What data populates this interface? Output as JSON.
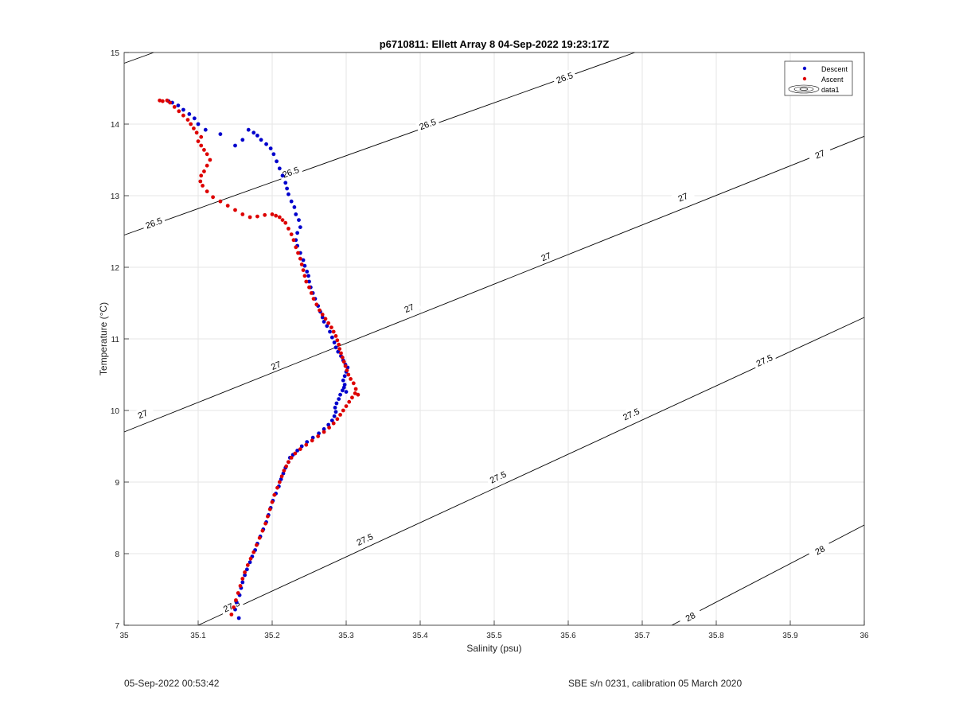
{
  "chart_data": {
    "type": "scatter",
    "title": "p6710811: Ellett Array 8 04-Sep-2022 19:23:17Z",
    "xlabel": "Salinity (psu)",
    "ylabel": "Temperature (°C)",
    "xlim": [
      35,
      36
    ],
    "ylim": [
      7,
      15
    ],
    "xticks": [
      35,
      35.1,
      35.2,
      35.3,
      35.4,
      35.5,
      35.6,
      35.7,
      35.8,
      35.9,
      36
    ],
    "xtick_labels": [
      "35",
      "35.1",
      "35.2",
      "35.3",
      "35.4",
      "35.5",
      "35.6",
      "35.7",
      "35.8",
      "35.9",
      "36"
    ],
    "yticks": [
      7,
      8,
      9,
      10,
      11,
      12,
      13,
      14,
      15
    ],
    "ytick_labels": [
      "7",
      "8",
      "9",
      "10",
      "11",
      "12",
      "13",
      "14",
      "15"
    ],
    "grid": true,
    "legend": {
      "placement": "top-right",
      "entries": [
        "Descent",
        "Ascent",
        "data1"
      ]
    },
    "contours": [
      {
        "level_label": "26.5",
        "points": [
          [
            35.0,
            14.85
          ],
          [
            35.0,
            12.45
          ],
          [
            35.7,
            15.0
          ]
        ],
        "segments": [
          [
            [
              35.0,
              14.85
            ],
            [
              35.04,
              15.0
            ]
          ],
          [
            [
              35.0,
              12.45
            ],
            [
              35.69,
              15.0
            ]
          ]
        ],
        "labels": [
          {
            "x": 35.04,
            "y": 12.62,
            "text": "26.5"
          },
          {
            "x": 35.225,
            "y": 13.33,
            "text": "26.5"
          },
          {
            "x": 35.41,
            "y": 14.0,
            "text": "26.5"
          },
          {
            "x": 35.595,
            "y": 14.65,
            "text": "26.5"
          }
        ]
      },
      {
        "level_label": "27",
        "segments": [
          [
            [
              35.0,
              9.7
            ],
            [
              36.0,
              13.83
            ]
          ]
        ],
        "labels": [
          {
            "x": 35.025,
            "y": 9.95,
            "text": "27"
          },
          {
            "x": 35.205,
            "y": 10.63,
            "text": "27"
          },
          {
            "x": 35.385,
            "y": 11.43,
            "text": "27"
          },
          {
            "x": 35.57,
            "y": 12.15,
            "text": "27"
          },
          {
            "x": 35.755,
            "y": 12.98,
            "text": "27"
          },
          {
            "x": 35.94,
            "y": 13.58,
            "text": "27"
          }
        ]
      },
      {
        "level_label": "27.5",
        "segments": [
          [
            [
              35.1,
              7.0
            ],
            [
              36.0,
              11.3
            ]
          ]
        ],
        "labels": [
          {
            "x": 35.145,
            "y": 7.27,
            "text": "27.5"
          },
          {
            "x": 35.325,
            "y": 8.2,
            "text": "27.5"
          },
          {
            "x": 35.505,
            "y": 9.07,
            "text": "27.5"
          },
          {
            "x": 35.685,
            "y": 9.95,
            "text": "27.5"
          },
          {
            "x": 35.865,
            "y": 10.7,
            "text": "27.5"
          }
        ]
      },
      {
        "level_label": "28",
        "segments": [
          [
            [
              35.74,
              7.0
            ],
            [
              36.0,
              8.4
            ]
          ]
        ],
        "labels": [
          {
            "x": 35.765,
            "y": 7.12,
            "text": "28"
          },
          {
            "x": 35.94,
            "y": 8.05,
            "text": "28"
          }
        ]
      }
    ],
    "series": [
      {
        "name": "Descent",
        "color": "#0000cc",
        "x": [
          35.155,
          35.15,
          35.152,
          35.156,
          35.158,
          35.16,
          35.163,
          35.166,
          35.17,
          35.173,
          35.177,
          35.18,
          35.184,
          35.188,
          35.192,
          35.195,
          35.198,
          35.201,
          35.205,
          35.209,
          35.212,
          35.215,
          35.218,
          35.222,
          35.224,
          35.228,
          35.234,
          35.24,
          35.247,
          35.255,
          35.263,
          35.27,
          35.276,
          35.281,
          35.284,
          35.286,
          35.285,
          35.287,
          35.29,
          35.292,
          35.295,
          35.297,
          35.3,
          35.298,
          35.296,
          35.298,
          35.3,
          35.302,
          35.299,
          35.296,
          35.293,
          35.289,
          35.286,
          35.284,
          35.281,
          35.278,
          35.274,
          35.27,
          35.268,
          35.265,
          35.262,
          35.258,
          35.255,
          35.252,
          35.25,
          35.249,
          35.247,
          35.244,
          35.242,
          35.238,
          35.234,
          35.232,
          35.234,
          35.238,
          35.236,
          35.232,
          35.23,
          35.226,
          35.222,
          35.22,
          35.218,
          35.214,
          35.21,
          35.206,
          35.202,
          35.198,
          35.192,
          35.185,
          35.18,
          35.175,
          35.168,
          35.16,
          35.15,
          35.13,
          35.11,
          35.1,
          35.095,
          35.088,
          35.08,
          35.073,
          35.065,
          35.06
        ],
        "y": [
          7.1,
          7.22,
          7.32,
          7.42,
          7.52,
          7.6,
          7.7,
          7.78,
          7.88,
          7.96,
          8.05,
          8.14,
          8.24,
          8.34,
          8.44,
          8.54,
          8.64,
          8.74,
          8.84,
          8.94,
          9.04,
          9.12,
          9.2,
          9.28,
          9.34,
          9.38,
          9.44,
          9.5,
          9.56,
          9.62,
          9.68,
          9.74,
          9.8,
          9.86,
          9.92,
          9.98,
          10.04,
          10.1,
          10.16,
          10.22,
          10.28,
          10.32,
          10.26,
          10.36,
          10.42,
          10.48,
          10.54,
          10.6,
          10.64,
          10.7,
          10.76,
          10.82,
          10.88,
          10.95,
          11.02,
          11.1,
          11.18,
          11.24,
          11.3,
          11.38,
          11.46,
          11.56,
          11.64,
          11.72,
          11.8,
          11.88,
          11.94,
          12.02,
          12.1,
          12.2,
          12.3,
          12.38,
          12.48,
          12.56,
          12.66,
          12.74,
          12.84,
          12.92,
          13.02,
          13.1,
          13.18,
          13.28,
          13.38,
          13.48,
          13.58,
          13.66,
          13.72,
          13.78,
          13.84,
          13.88,
          13.92,
          13.78,
          13.7,
          13.86,
          13.92,
          14.0,
          14.08,
          14.14,
          14.2,
          14.26,
          14.3,
          14.32
        ]
      },
      {
        "name": "Ascent",
        "color": "#dd0000",
        "x": [
          35.145,
          35.148,
          35.151,
          35.154,
          35.157,
          35.16,
          35.163,
          35.167,
          35.171,
          35.175,
          35.179,
          35.183,
          35.187,
          35.191,
          35.194,
          35.197,
          35.2,
          35.203,
          35.207,
          35.21,
          35.213,
          35.216,
          35.219,
          35.222,
          35.226,
          35.231,
          35.238,
          35.246,
          35.254,
          35.262,
          35.27,
          35.277,
          35.283,
          35.288,
          35.292,
          35.296,
          35.3,
          35.304,
          35.308,
          35.312,
          35.316,
          35.313,
          35.31,
          35.306,
          35.303,
          35.301,
          35.299,
          35.297,
          35.295,
          35.293,
          35.291,
          35.29,
          35.288,
          35.286,
          35.283,
          35.28,
          35.276,
          35.272,
          35.268,
          35.264,
          35.26,
          35.256,
          35.253,
          35.25,
          35.246,
          35.244,
          35.242,
          35.24,
          35.238,
          35.235,
          35.232,
          35.229,
          35.226,
          35.222,
          35.218,
          35.214,
          35.21,
          35.205,
          35.2,
          35.19,
          35.18,
          35.17,
          35.16,
          35.15,
          35.14,
          35.13,
          35.12,
          35.112,
          35.106,
          35.103,
          35.104,
          35.108,
          35.112,
          35.116,
          35.112,
          35.108,
          35.104,
          35.1,
          35.104,
          35.098,
          35.094,
          35.09,
          35.086,
          35.08,
          35.074,
          35.068,
          35.062,
          35.058,
          35.052,
          35.048
        ],
        "y": [
          7.15,
          7.25,
          7.35,
          7.45,
          7.55,
          7.65,
          7.74,
          7.84,
          7.93,
          8.02,
          8.12,
          8.22,
          8.32,
          8.42,
          8.52,
          8.62,
          8.72,
          8.82,
          8.92,
          9.0,
          9.08,
          9.16,
          9.22,
          9.28,
          9.34,
          9.4,
          9.46,
          9.52,
          9.58,
          9.64,
          9.7,
          9.76,
          9.82,
          9.88,
          9.94,
          10.0,
          10.06,
          10.12,
          10.18,
          10.24,
          10.22,
          10.3,
          10.38,
          10.44,
          10.5,
          10.56,
          10.62,
          10.68,
          10.74,
          10.8,
          10.86,
          10.92,
          10.98,
          11.04,
          11.1,
          11.16,
          11.22,
          11.28,
          11.34,
          11.4,
          11.48,
          11.56,
          11.64,
          11.72,
          11.8,
          11.88,
          11.96,
          12.04,
          12.12,
          12.2,
          12.28,
          12.38,
          12.46,
          12.54,
          12.62,
          12.66,
          12.7,
          12.72,
          12.74,
          12.73,
          12.71,
          12.7,
          12.74,
          12.8,
          12.86,
          12.92,
          12.98,
          13.06,
          13.14,
          13.2,
          13.28,
          13.34,
          13.42,
          13.5,
          13.58,
          13.64,
          13.7,
          13.76,
          13.82,
          13.88,
          13.94,
          14.0,
          14.06,
          14.12,
          14.18,
          14.24,
          14.3,
          14.33,
          14.32,
          14.33
        ]
      }
    ]
  },
  "footer": {
    "left": "05-Sep-2022 00:53:42",
    "right": "SBE s/n 0231, calibration 05 March 2020"
  }
}
